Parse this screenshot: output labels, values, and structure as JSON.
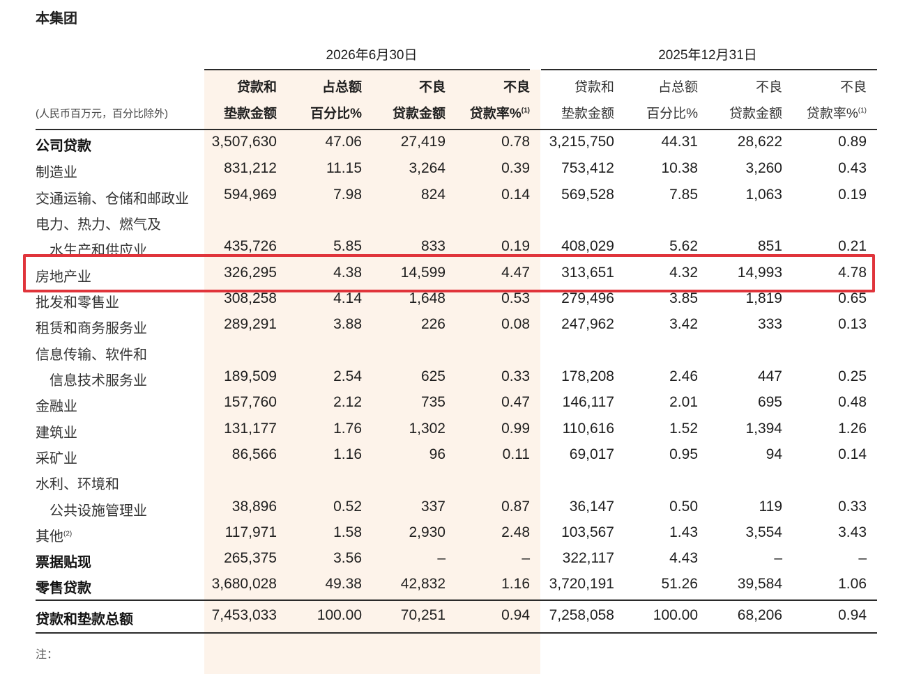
{
  "title": "本集团",
  "unit_note": "(人民币百万元，百分比除外)",
  "periods": [
    "2026年6月30日",
    "2025年12月31日"
  ],
  "headers": {
    "loan_amount": [
      "贷款和",
      "垫款金额"
    ],
    "share": [
      "占总额",
      "百分比%"
    ],
    "npl_amount": [
      "不良",
      "贷款金额"
    ],
    "npl_ratio": [
      "不良",
      "贷款率%",
      "(1)"
    ]
  },
  "rows": [
    {
      "label": [
        "公司贷款"
      ],
      "bold": true,
      "v": [
        "3,507,630",
        "47.06",
        "27,419",
        "0.78",
        "3,215,750",
        "44.31",
        "28,622",
        "0.89"
      ]
    },
    {
      "label": [
        "制造业"
      ],
      "v": [
        "831,212",
        "11.15",
        "3,264",
        "0.39",
        "753,412",
        "10.38",
        "3,260",
        "0.43"
      ]
    },
    {
      "label": [
        "交通运输、仓储和邮政业"
      ],
      "v": [
        "594,969",
        "7.98",
        "824",
        "0.14",
        "569,528",
        "7.85",
        "1,063",
        "0.19"
      ]
    },
    {
      "label": [
        "电力、热力、燃气及",
        "水生产和供应业"
      ],
      "v": [
        "435,726",
        "5.85",
        "833",
        "0.19",
        "408,029",
        "5.62",
        "851",
        "0.21"
      ]
    },
    {
      "label": [
        "房地产业"
      ],
      "highlight": true,
      "v": [
        "326,295",
        "4.38",
        "14,599",
        "4.47",
        "313,651",
        "4.32",
        "14,993",
        "4.78"
      ]
    },
    {
      "label": [
        "批发和零售业"
      ],
      "v": [
        "308,258",
        "4.14",
        "1,648",
        "0.53",
        "279,496",
        "3.85",
        "1,819",
        "0.65"
      ]
    },
    {
      "label": [
        "租赁和商务服务业"
      ],
      "v": [
        "289,291",
        "3.88",
        "226",
        "0.08",
        "247,962",
        "3.42",
        "333",
        "0.13"
      ]
    },
    {
      "label": [
        "信息传输、软件和",
        "信息技术服务业"
      ],
      "v": [
        "189,509",
        "2.54",
        "625",
        "0.33",
        "178,208",
        "2.46",
        "447",
        "0.25"
      ]
    },
    {
      "label": [
        "金融业"
      ],
      "v": [
        "157,760",
        "2.12",
        "735",
        "0.47",
        "146,117",
        "2.01",
        "695",
        "0.48"
      ]
    },
    {
      "label": [
        "建筑业"
      ],
      "v": [
        "131,177",
        "1.76",
        "1,302",
        "0.99",
        "110,616",
        "1.52",
        "1,394",
        "1.26"
      ]
    },
    {
      "label": [
        "采矿业"
      ],
      "v": [
        "86,566",
        "1.16",
        "96",
        "0.11",
        "69,017",
        "0.95",
        "94",
        "0.14"
      ]
    },
    {
      "label": [
        "水利、环境和",
        "公共设施管理业"
      ],
      "v": [
        "38,896",
        "0.52",
        "337",
        "0.87",
        "36,147",
        "0.50",
        "119",
        "0.33"
      ]
    },
    {
      "label": [
        "其他"
      ],
      "sup": "(2)",
      "v": [
        "117,971",
        "1.58",
        "2,930",
        "2.48",
        "103,567",
        "1.43",
        "3,554",
        "3.43"
      ]
    },
    {
      "label": [
        "票据贴现"
      ],
      "bold": true,
      "v": [
        "265,375",
        "3.56",
        "–",
        "–",
        "322,117",
        "4.43",
        "–",
        "–"
      ]
    },
    {
      "label": [
        "零售贷款"
      ],
      "bold": true,
      "v": [
        "3,680,028",
        "49.38",
        "42,832",
        "1.16",
        "3,720,191",
        "51.26",
        "39,584",
        "1.06"
      ]
    },
    {
      "label": [
        "贷款和垫款总额"
      ],
      "bold": true,
      "v": [
        "7,453,033",
        "100.00",
        "70,251",
        "0.94",
        "7,258,058",
        "100.00",
        "68,206",
        "0.94"
      ]
    }
  ],
  "footnote": "注："
}
